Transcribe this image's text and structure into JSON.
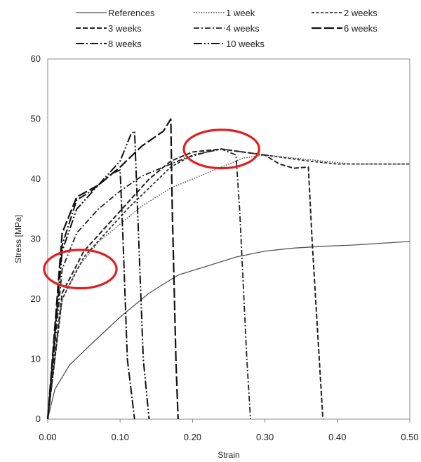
{
  "chart_data": {
    "type": "line",
    "title": "",
    "xlabel": "Strain",
    "ylabel": "Stress [MPa]",
    "xlim": [
      0,
      0.5
    ],
    "ylim": [
      0,
      60
    ],
    "x_ticks": [
      "0.00",
      "0.10",
      "0.20",
      "0.30",
      "0.40",
      "0.50"
    ],
    "y_ticks": [
      "0",
      "10",
      "20",
      "30",
      "40",
      "50",
      "60"
    ],
    "grid": false,
    "legend_position": "top",
    "series": [
      {
        "name": "References",
        "dash": "solid",
        "color": "#555555",
        "points": [
          [
            0,
            0
          ],
          [
            0.01,
            5
          ],
          [
            0.03,
            9
          ],
          [
            0.06,
            12.5
          ],
          [
            0.1,
            17
          ],
          [
            0.14,
            21
          ],
          [
            0.18,
            24
          ],
          [
            0.22,
            25.5
          ],
          [
            0.26,
            27
          ],
          [
            0.3,
            28
          ],
          [
            0.34,
            28.5
          ],
          [
            0.38,
            28.8
          ],
          [
            0.42,
            29
          ],
          [
            0.46,
            29.3
          ],
          [
            0.5,
            29.6
          ]
        ]
      },
      {
        "name": "1 week",
        "dash": "dotted",
        "color": "#444444",
        "points": [
          [
            0,
            0
          ],
          [
            0.02,
            20
          ],
          [
            0.04,
            25
          ],
          [
            0.07,
            29.5
          ],
          [
            0.1,
            32.5
          ],
          [
            0.13,
            35.5
          ],
          [
            0.17,
            38.5
          ],
          [
            0.2,
            40
          ],
          [
            0.24,
            42
          ],
          [
            0.27,
            43.5
          ],
          [
            0.3,
            44
          ],
          [
            0.34,
            43.5
          ],
          [
            0.38,
            43
          ],
          [
            0.42,
            42.5
          ],
          [
            0.46,
            42.5
          ],
          [
            0.5,
            42.5
          ]
        ]
      },
      {
        "name": "2 weeks",
        "dash": "short-dash",
        "color": "#333333",
        "points": [
          [
            0,
            0
          ],
          [
            0.02,
            20
          ],
          [
            0.05,
            27
          ],
          [
            0.08,
            31
          ],
          [
            0.11,
            35
          ],
          [
            0.14,
            38.5
          ],
          [
            0.17,
            42
          ],
          [
            0.2,
            44
          ],
          [
            0.24,
            45
          ],
          [
            0.27,
            44.5
          ],
          [
            0.3,
            44
          ],
          [
            0.33,
            43.5
          ],
          [
            0.36,
            43
          ],
          [
            0.4,
            42.5
          ],
          [
            0.45,
            42.5
          ],
          [
            0.5,
            42.5
          ]
        ]
      },
      {
        "name": "3 weeks",
        "dash": "dash",
        "color": "#222222",
        "points": [
          [
            0,
            0
          ],
          [
            0.02,
            21
          ],
          [
            0.05,
            28
          ],
          [
            0.08,
            32
          ],
          [
            0.11,
            36
          ],
          [
            0.14,
            40
          ],
          [
            0.17,
            43
          ],
          [
            0.2,
            44.5
          ],
          [
            0.24,
            45
          ],
          [
            0.27,
            44.5
          ],
          [
            0.3,
            44
          ],
          [
            0.32,
            42.5
          ],
          [
            0.34,
            41.8
          ],
          [
            0.36,
            42
          ],
          [
            0.365,
            30
          ],
          [
            0.375,
            10
          ],
          [
            0.38,
            0
          ]
        ]
      },
      {
        "name": "4 weeks",
        "dash": "dash-dot",
        "color": "#222222",
        "points": [
          [
            0,
            0
          ],
          [
            0.02,
            25
          ],
          [
            0.04,
            31
          ],
          [
            0.07,
            35
          ],
          [
            0.1,
            38
          ],
          [
            0.13,
            40.5
          ],
          [
            0.16,
            42
          ],
          [
            0.19,
            43.5
          ],
          [
            0.22,
            44.5
          ],
          [
            0.24,
            45
          ],
          [
            0.26,
            44
          ],
          [
            0.265,
            35
          ],
          [
            0.275,
            10
          ],
          [
            0.28,
            0
          ]
        ]
      },
      {
        "name": "6 weeks",
        "dash": "long-dash",
        "color": "#111111",
        "points": [
          [
            0,
            0
          ],
          [
            0.02,
            31
          ],
          [
            0.04,
            37
          ],
          [
            0.07,
            39
          ],
          [
            0.1,
            42
          ],
          [
            0.13,
            45.5
          ],
          [
            0.16,
            48
          ],
          [
            0.17,
            50
          ],
          [
            0.172,
            35
          ],
          [
            0.177,
            10
          ],
          [
            0.18,
            0
          ]
        ]
      },
      {
        "name": "8 weeks",
        "dash": "long-dash-dot",
        "color": "#111111",
        "points": [
          [
            0,
            0
          ],
          [
            0.02,
            29
          ],
          [
            0.04,
            36.5
          ],
          [
            0.06,
            38
          ],
          [
            0.08,
            40
          ],
          [
            0.09,
            41
          ],
          [
            0.1,
            41.5
          ],
          [
            0.104,
            30
          ],
          [
            0.11,
            10
          ],
          [
            0.12,
            0
          ]
        ]
      },
      {
        "name": "10 weeks",
        "dash": "long-dash-dot-dot",
        "color": "#111111",
        "points": [
          [
            0,
            0
          ],
          [
            0.02,
            28
          ],
          [
            0.04,
            35
          ],
          [
            0.07,
            39
          ],
          [
            0.1,
            43
          ],
          [
            0.115,
            47.5
          ],
          [
            0.12,
            48
          ],
          [
            0.124,
            35
          ],
          [
            0.132,
            10
          ],
          [
            0.14,
            0
          ]
        ]
      }
    ],
    "annotations": [
      {
        "shape": "ellipse",
        "color": "#e02020",
        "center": [
          0.045,
          25
        ],
        "radius": [
          0.05,
          3.2
        ]
      },
      {
        "shape": "ellipse",
        "color": "#e02020",
        "center": [
          0.24,
          45
        ],
        "radius": [
          0.052,
          3.2
        ]
      }
    ]
  }
}
